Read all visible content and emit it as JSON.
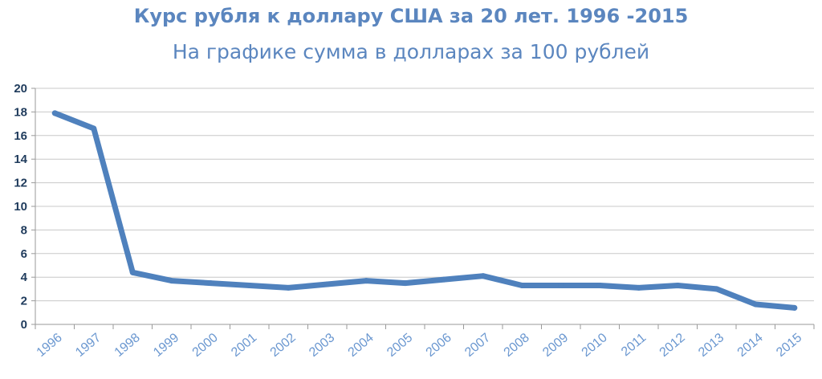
{
  "chart_data": {
    "type": "line",
    "title": "Курс рубля к доллару США за 20 лет. 1996 -2015",
    "subtitle": "На графике сумма в долларах за 100 рублей",
    "x": [
      "1996",
      "1997",
      "1998",
      "1999",
      "2000",
      "2001",
      "2002",
      "2003",
      "2004",
      "2005",
      "2006",
      "2007",
      "2008",
      "2009",
      "2010",
      "2011",
      "2012",
      "2013",
      "2014",
      "2015"
    ],
    "series": [
      {
        "values": [
          17.9,
          16.6,
          4.4,
          3.7,
          3.5,
          3.3,
          3.1,
          3.4,
          3.7,
          3.5,
          3.8,
          4.1,
          3.3,
          3.3,
          3.3,
          3.1,
          3.3,
          3.0,
          1.7,
          1.4
        ]
      }
    ],
    "ylim": [
      0,
      20
    ],
    "yticks": [
      0,
      2,
      4,
      6,
      8,
      10,
      12,
      14,
      16,
      18,
      20
    ],
    "grid": true,
    "line_color": "#4f81bd"
  }
}
